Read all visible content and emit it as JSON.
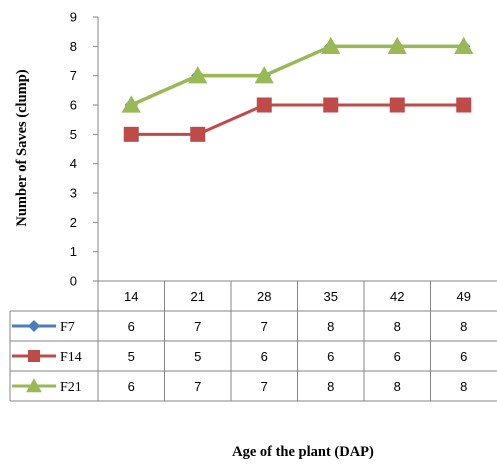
{
  "chart_data": {
    "type": "line",
    "x": [
      "14",
      "21",
      "28",
      "35",
      "42",
      "49"
    ],
    "series": [
      {
        "name": "F7",
        "values": [
          6,
          7,
          7,
          8,
          8,
          8
        ],
        "color": "#4a7ebb",
        "marker": "diamond"
      },
      {
        "name": "F14",
        "values": [
          5,
          5,
          6,
          6,
          6,
          6
        ],
        "color": "#be4b48",
        "marker": "square"
      },
      {
        "name": "F21",
        "values": [
          6,
          7,
          7,
          8,
          8,
          8
        ],
        "color": "#98b954",
        "marker": "triangle"
      }
    ],
    "xlabel": "Age of the plant  (DAP)",
    "ylabel": "Number of  Saves (clump)",
    "ylim": [
      0,
      9
    ],
    "yticks": [
      "0",
      "1",
      "2",
      "3",
      "4",
      "5",
      "6",
      "7",
      "8",
      "9"
    ],
    "grid": false,
    "legend": "data-table"
  }
}
